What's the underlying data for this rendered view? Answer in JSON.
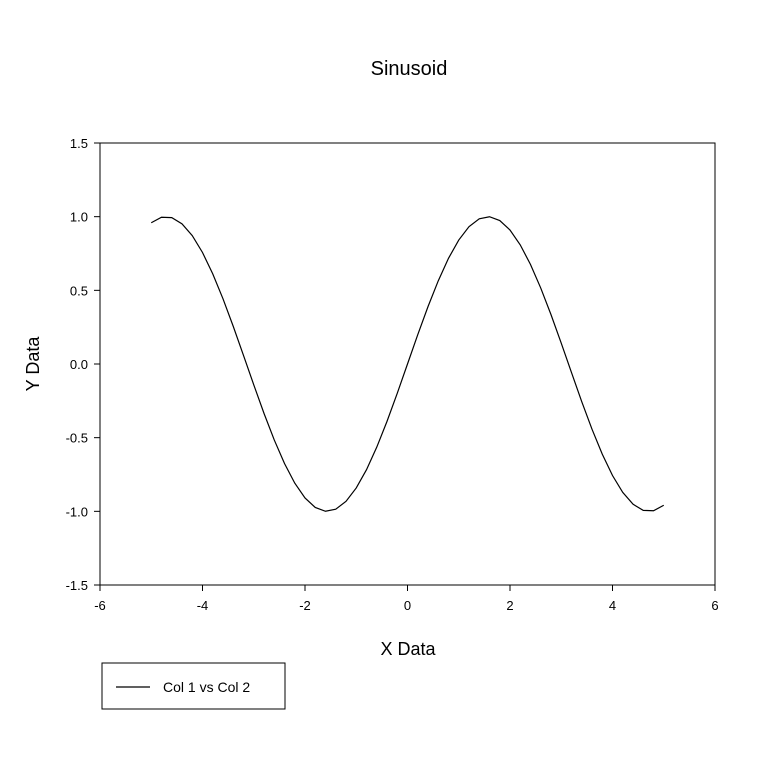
{
  "chart_data": {
    "type": "line",
    "title": "Sinusoid",
    "xlabel": "X Data",
    "ylabel": "Y Data",
    "xlim": [
      -6,
      6
    ],
    "ylim": [
      -1.5,
      1.5
    ],
    "x_ticks": [
      -6,
      -4,
      -2,
      0,
      2,
      4,
      6
    ],
    "x_tick_labels": [
      "-6",
      "-4",
      "-2",
      "0",
      "2",
      "4",
      "6"
    ],
    "y_ticks": [
      -1.5,
      -1.0,
      -0.5,
      0.0,
      0.5,
      1.0,
      1.5
    ],
    "y_tick_labels": [
      "-1.5",
      "-1.0",
      "-0.5",
      "0.0",
      "0.5",
      "1.0",
      "1.5"
    ],
    "grid": false,
    "legend_position": "bottom-left",
    "series": [
      {
        "name": "Col 1 vs Col 2",
        "color": "#000000",
        "x": [
          -5.0,
          -4.8,
          -4.6,
          -4.4,
          -4.2,
          -4.0,
          -3.8,
          -3.6,
          -3.4,
          -3.2,
          -3.0,
          -2.8,
          -2.6,
          -2.4,
          -2.2,
          -2.0,
          -1.8,
          -1.6,
          -1.4,
          -1.2,
          -1.0,
          -0.8,
          -0.6,
          -0.4,
          -0.2,
          0.0,
          0.2,
          0.4,
          0.6,
          0.8,
          1.0,
          1.2,
          1.4,
          1.6,
          1.8,
          2.0,
          2.2,
          2.4,
          2.6,
          2.8,
          3.0,
          3.2,
          3.4,
          3.6,
          3.8,
          4.0,
          4.2,
          4.4,
          4.6,
          4.8,
          5.0
        ],
        "y": [
          0.9589,
          0.9962,
          0.9937,
          0.9516,
          0.8716,
          0.7568,
          0.6119,
          0.4425,
          0.2555,
          0.0584,
          -0.1411,
          -0.335,
          -0.5155,
          -0.6755,
          -0.8085,
          -0.9093,
          -0.9738,
          -0.9996,
          -0.9854,
          -0.932,
          -0.8415,
          -0.7174,
          -0.5646,
          -0.3894,
          -0.1987,
          0.0,
          0.1987,
          0.3894,
          0.5646,
          0.7174,
          0.8415,
          0.932,
          0.9854,
          0.9996,
          0.9738,
          0.9093,
          0.8085,
          0.6755,
          0.5155,
          0.335,
          0.1411,
          -0.0584,
          -0.2555,
          -0.4425,
          -0.6119,
          -0.7568,
          -0.8716,
          -0.9516,
          -0.9937,
          -0.9962,
          -0.9589
        ]
      }
    ]
  }
}
